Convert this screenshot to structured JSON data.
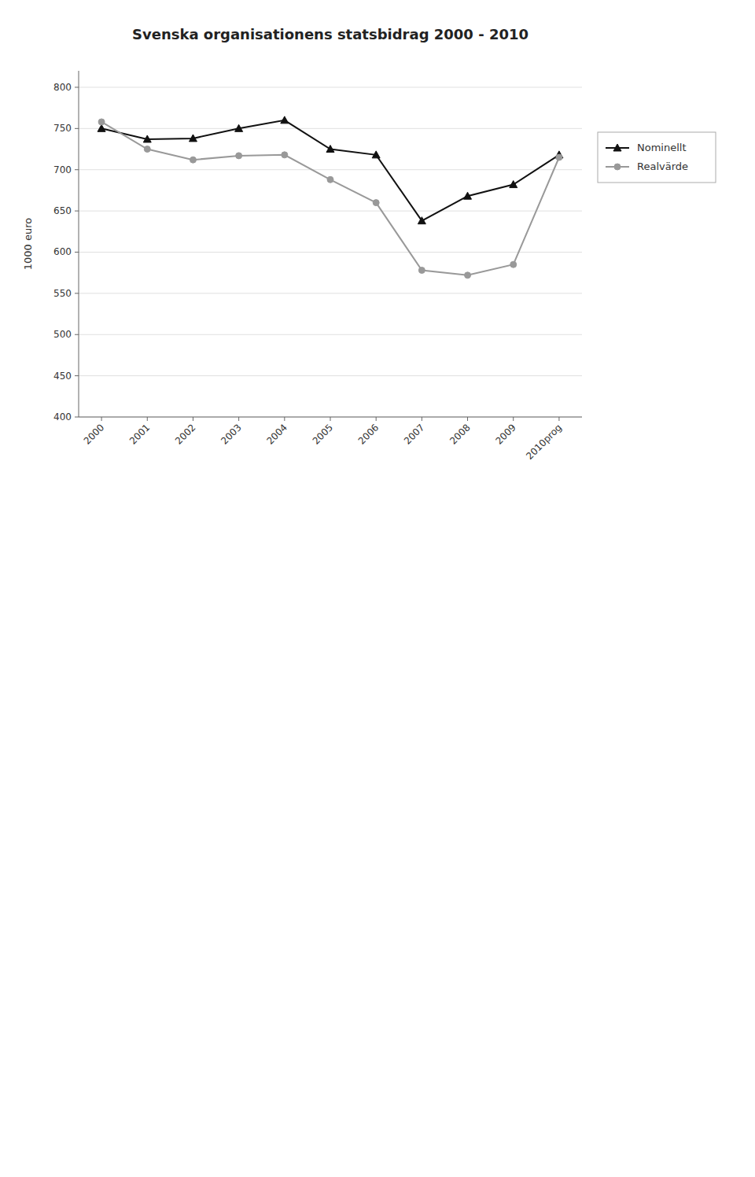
{
  "chart_data": {
    "type": "line",
    "title": "Svenska organisationens statsbidrag 2000 - 2010",
    "ylabel": "1000 euro",
    "categories": [
      "2000",
      "2001",
      "2002",
      "2003",
      "2004",
      "2005",
      "2006",
      "2007",
      "2008",
      "2009",
      "2010prog"
    ],
    "series": [
      {
        "name": "Nominellt",
        "color": "#111111",
        "marker": "triangle",
        "values": [
          750,
          737,
          738,
          750,
          760,
          725,
          718,
          638,
          668,
          682,
          718
        ]
      },
      {
        "name": "Realvärde",
        "color": "#999999",
        "marker": "circle",
        "values": [
          758,
          725,
          712,
          717,
          718,
          688,
          660,
          578,
          572,
          585,
          715
        ]
      }
    ],
    "ylim": [
      400,
      820
    ],
    "yticks": [
      400,
      450,
      500,
      550,
      600,
      650,
      700,
      750,
      800
    ],
    "grid": true,
    "legend": "right"
  }
}
